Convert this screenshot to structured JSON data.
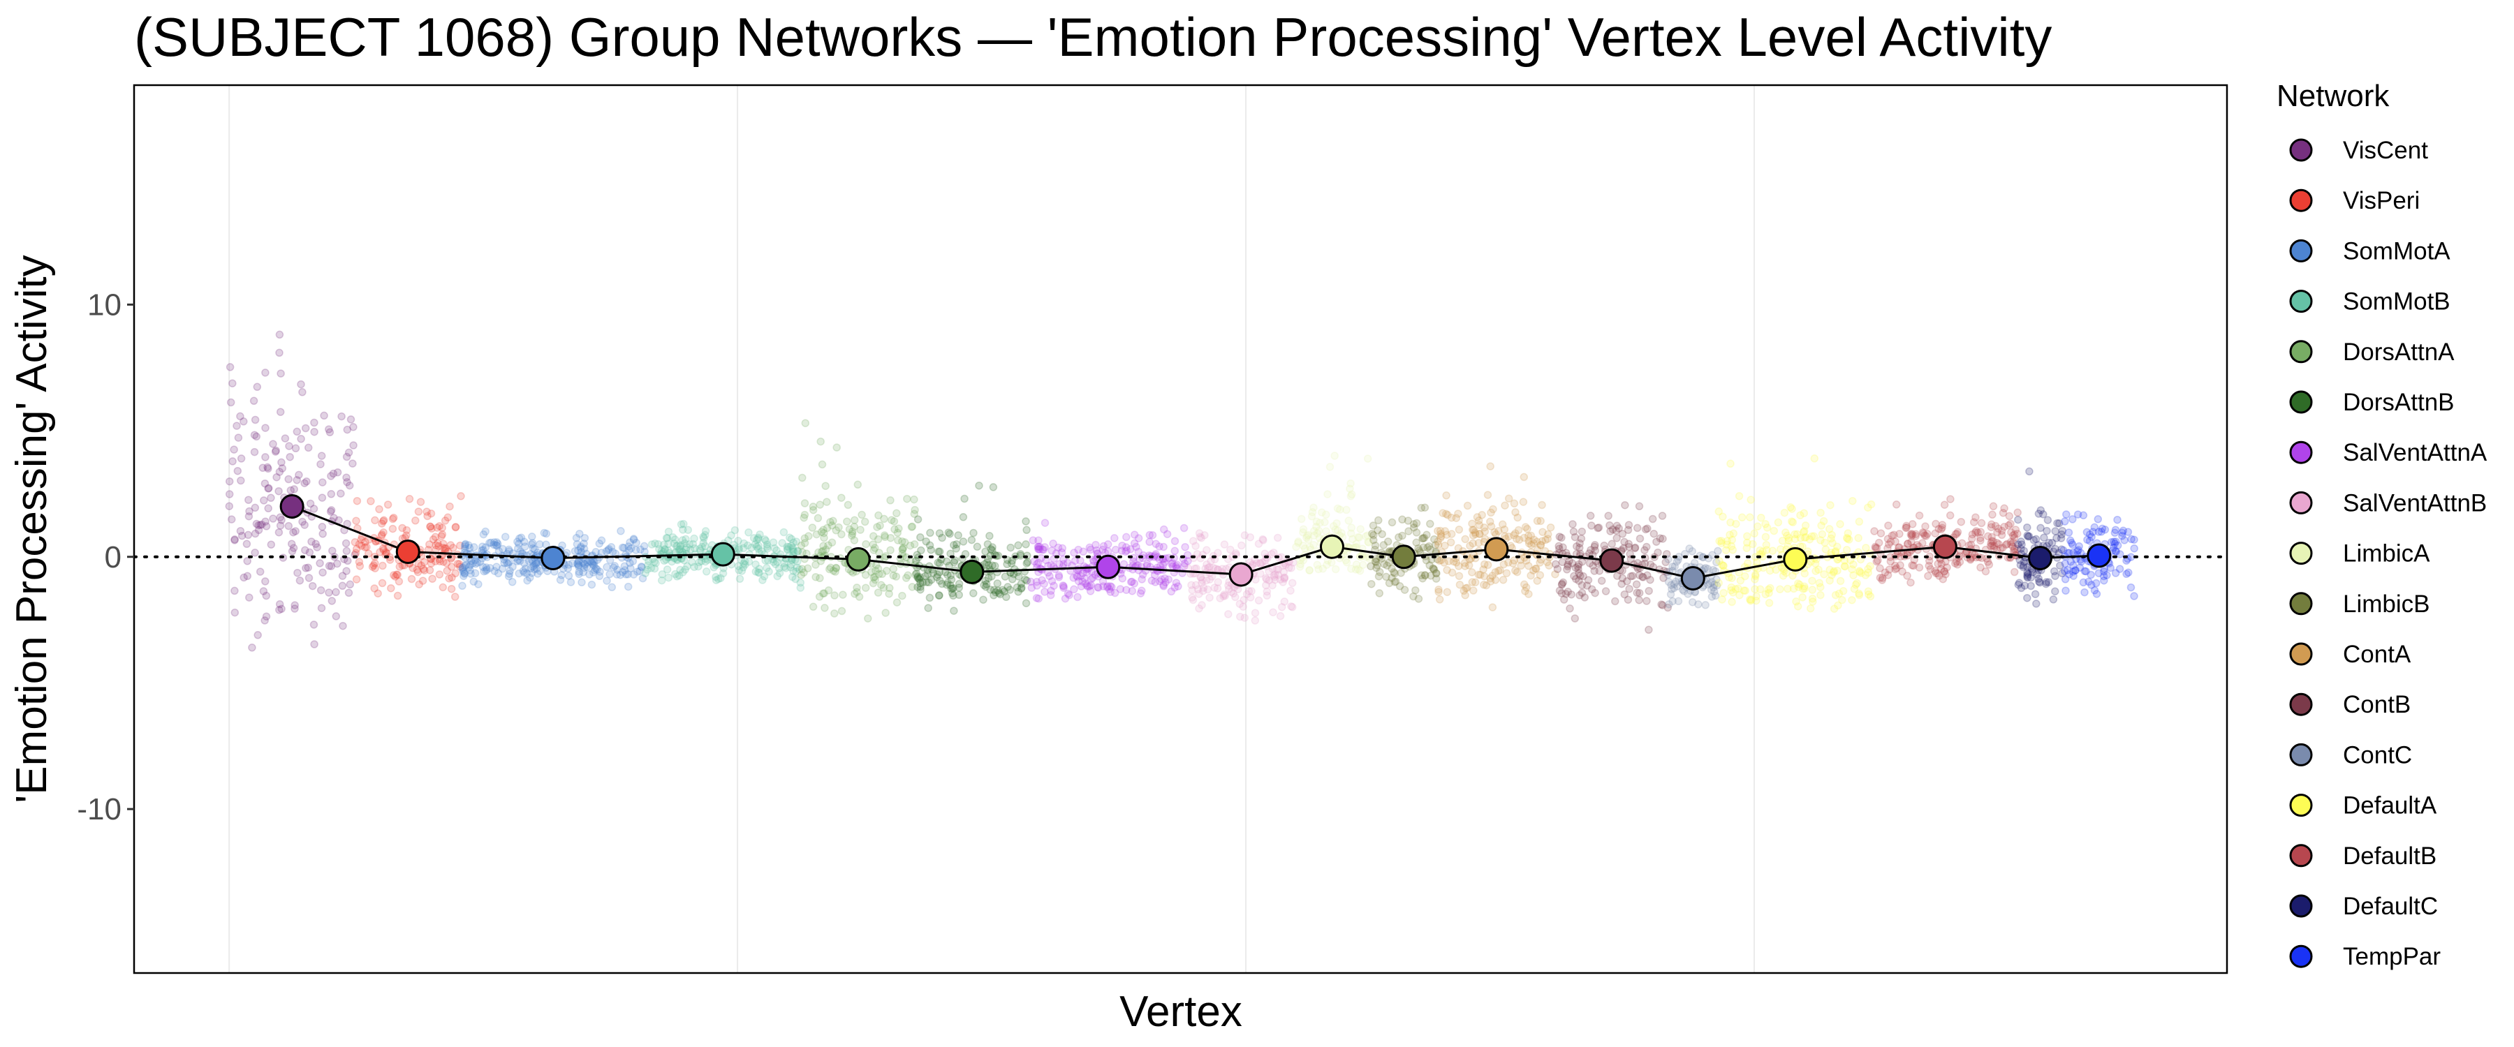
{
  "chart_data": {
    "type": "scatter",
    "title": "(SUBJECT 1068) Group Networks — 'Emotion Processing' Vertex Level Activity",
    "xlabel": "Vertex",
    "ylabel": "'Emotion Processing' Activity",
    "xlim": [
      -3740,
      78600
    ],
    "ylim": [
      -16.5,
      18.7
    ],
    "x_gridlines": [
      0,
      20000,
      40000,
      60000
    ],
    "y_ticks": [
      {
        "value": 10,
        "label": "10"
      },
      {
        "value": 0,
        "label": "0"
      },
      {
        "value": -10,
        "label": "-10"
      }
    ],
    "reference_line": {
      "y": 0,
      "style": "dotted"
    },
    "grid": true,
    "legend": {
      "title": "Network",
      "placement": "right"
    },
    "series": [
      {
        "name": "VisCent",
        "color": "#76307F",
        "vertex_start": 0,
        "vertex_end": 4945,
        "mean": 2.0,
        "range": [
          -3.6,
          9.8
        ],
        "sd": 2.8
      },
      {
        "name": "VisPeri",
        "color": "#EB3F33",
        "vertex_start": 4945,
        "vertex_end": 9128,
        "mean": 0.2,
        "range": [
          -2.0,
          3.0
        ],
        "sd": 0.8
      },
      {
        "name": "SomMotA",
        "color": "#4D84D1",
        "vertex_start": 9128,
        "vertex_end": 16355,
        "mean": -0.05,
        "range": [
          -1.3,
          1.6
        ],
        "sd": 0.45
      },
      {
        "name": "SomMotB",
        "color": "#65C2A6",
        "vertex_start": 16355,
        "vertex_end": 22504,
        "mean": 0.1,
        "range": [
          -1.3,
          1.9
        ],
        "sd": 0.5
      },
      {
        "name": "DorsAttnA",
        "color": "#78AC64",
        "vertex_start": 22504,
        "vertex_end": 27005,
        "mean": -0.1,
        "range": [
          -2.6,
          5.8
        ],
        "sd": 1.3
      },
      {
        "name": "DorsAttnB",
        "color": "#2F6B27",
        "vertex_start": 27005,
        "vertex_end": 31442,
        "mean": -0.6,
        "range": [
          -2.2,
          3.9
        ],
        "sd": 0.8
      },
      {
        "name": "SalVentAttnA",
        "color": "#B044EA",
        "vertex_start": 31442,
        "vertex_end": 37718,
        "mean": -0.4,
        "range": [
          -1.7,
          2.9
        ],
        "sd": 0.6
      },
      {
        "name": "SalVentAttnB",
        "color": "#E9A7D0",
        "vertex_start": 37718,
        "vertex_end": 41902,
        "mean": -0.7,
        "range": [
          -3.0,
          1.9
        ],
        "sd": 0.75
      },
      {
        "name": "LimbicA",
        "color": "#E7F4B6",
        "vertex_start": 41902,
        "vertex_end": 44881,
        "mean": 0.4,
        "range": [
          -0.6,
          4.5
        ],
        "sd": 0.9
      },
      {
        "name": "LimbicB",
        "color": "#737D3D",
        "vertex_start": 44881,
        "vertex_end": 47544,
        "mean": 0.0,
        "range": [
          -2.3,
          2.5
        ],
        "sd": 0.8
      },
      {
        "name": "ContA",
        "color": "#D19B52",
        "vertex_start": 47544,
        "vertex_end": 52171,
        "mean": 0.3,
        "range": [
          -2.3,
          3.7
        ],
        "sd": 1.0
      },
      {
        "name": "ContB",
        "color": "#7B3A4A",
        "vertex_start": 52171,
        "vertex_end": 56608,
        "mean": -0.15,
        "range": [
          -2.9,
          2.4
        ],
        "sd": 0.9
      },
      {
        "name": "ContC",
        "color": "#7A8BAD",
        "vertex_start": 56608,
        "vertex_end": 58573,
        "mean": -0.85,
        "range": [
          -2.6,
          0.9
        ],
        "sd": 0.5
      },
      {
        "name": "DefaultA",
        "color": "#FDFC55",
        "vertex_start": 58573,
        "vertex_end": 64659,
        "mean": -0.1,
        "range": [
          -2.1,
          4.0
        ],
        "sd": 1.0
      },
      {
        "name": "DefaultB",
        "color": "#B7474F",
        "vertex_start": 64659,
        "vertex_end": 70364,
        "mean": 0.4,
        "range": [
          -1.8,
          2.6
        ],
        "sd": 0.7
      },
      {
        "name": "DefaultC",
        "color": "#1B1C6C",
        "vertex_start": 70364,
        "vertex_end": 72139,
        "mean": -0.05,
        "range": [
          -2.0,
          3.4
        ],
        "sd": 0.9
      },
      {
        "name": "TempPar",
        "color": "#1A33F5",
        "vertex_start": 72139,
        "vertex_end": 74992,
        "mean": 0.05,
        "range": [
          -1.9,
          3.3
        ],
        "sd": 0.8
      }
    ]
  }
}
